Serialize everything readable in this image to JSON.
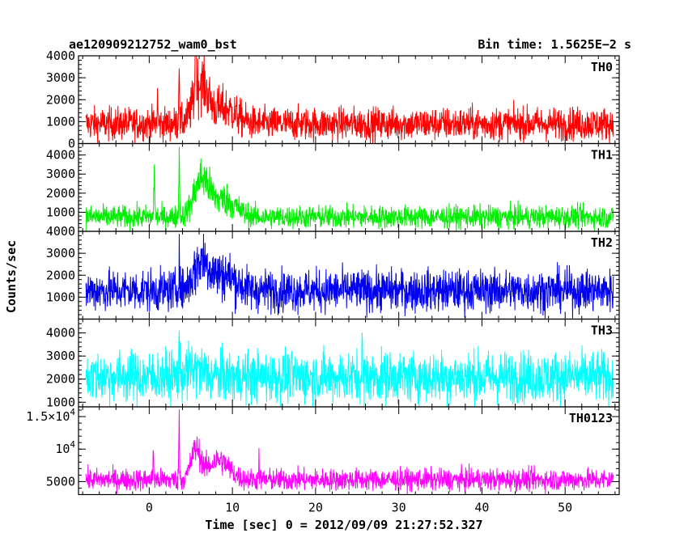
{
  "header": {
    "title": "ae120909212752_wam0_bst",
    "bin_time": "Bin time: 1.5625E−2 s"
  },
  "chart_data": {
    "type": "line",
    "title": "ae120909212752_wam0_bst",
    "xlabel": "Time [sec] 0 = 2012/09/09 21:27:52.327",
    "ylabel": "Counts/sec",
    "xlim": [
      -8.5,
      56.5
    ],
    "x_ticks": [
      0,
      10,
      20,
      30,
      40,
      50
    ],
    "data_range": [
      -7.6,
      55.8
    ],
    "grid": false,
    "panels": [
      {
        "name": "TH0",
        "color": "#ff0000",
        "ylim": [
          0,
          4000
        ],
        "y_ticks": [
          {
            "v": 0,
            "label": "0"
          },
          {
            "v": 1000,
            "label": "1000"
          },
          {
            "v": 2000,
            "label": "2000"
          },
          {
            "v": 3000,
            "label": "3000"
          },
          {
            "v": 4000,
            "label": "4000"
          }
        ],
        "baseline": 900,
        "noise": 380,
        "features": [
          {
            "t": 3.6,
            "amp": 3800,
            "w": 0.06
          },
          {
            "t": 5.6,
            "amp": 2600,
            "w": 0.12
          },
          {
            "t": 6.2,
            "amp": 1800,
            "w": 1.2
          },
          {
            "t": 1.0,
            "amp": 1300,
            "w": 0.06
          },
          {
            "t": 9.0,
            "amp": 700,
            "w": 2.0
          }
        ]
      },
      {
        "name": "TH1",
        "color": "#00ee00",
        "ylim": [
          0,
          4600
        ],
        "y_ticks": [
          {
            "v": 1000,
            "label": "1000"
          },
          {
            "v": 2000,
            "label": "2000"
          },
          {
            "v": 3000,
            "label": "3000"
          },
          {
            "v": 4000,
            "label": "4000"
          }
        ],
        "baseline": 750,
        "noise": 300,
        "features": [
          {
            "t": 3.6,
            "amp": 4000,
            "w": 0.06
          },
          {
            "t": 0.6,
            "amp": 2300,
            "w": 0.08
          },
          {
            "t": 6.3,
            "amp": 1900,
            "w": 1.3
          },
          {
            "t": 9.0,
            "amp": 900,
            "w": 2.0
          }
        ]
      },
      {
        "name": "TH2",
        "color": "#0000ee",
        "ylim": [
          0,
          4000
        ],
        "y_ticks": [
          {
            "v": 1000,
            "label": "1000"
          },
          {
            "v": 2000,
            "label": "2000"
          },
          {
            "v": 3000,
            "label": "3000"
          },
          {
            "v": 4000,
            "label": "4000"
          }
        ],
        "baseline": 1300,
        "noise": 480,
        "features": [
          {
            "t": 3.6,
            "amp": 2500,
            "w": 0.06
          },
          {
            "t": 6.3,
            "amp": 1300,
            "w": 1.3
          },
          {
            "t": 9.0,
            "amp": 700,
            "w": 2.0
          }
        ]
      },
      {
        "name": "TH3",
        "color": "#00ffff",
        "ylim": [
          800,
          4600
        ],
        "y_ticks": [
          {
            "v": 1000,
            "label": "1000"
          },
          {
            "v": 2000,
            "label": "2000"
          },
          {
            "v": 3000,
            "label": "3000"
          },
          {
            "v": 4000,
            "label": "4000"
          }
        ],
        "baseline": 2100,
        "noise": 560,
        "features": [
          {
            "t": 3.6,
            "amp": 2300,
            "w": 0.05
          },
          {
            "t": 25.6,
            "amp": 1500,
            "w": 0.05
          },
          {
            "t": 5.5,
            "amp": 300,
            "w": 1.5
          }
        ]
      },
      {
        "name": "TH0123",
        "color": "#ff00ff",
        "ylim": [
          3000,
          16500
        ],
        "y_ticks": [
          {
            "v": 5000,
            "label": "5000",
            "sci": false
          },
          {
            "v": 10000,
            "mantissa": "",
            "exp": "4",
            "sci": true
          },
          {
            "v": 15000,
            "mantissa": "1.5",
            "exp": "4",
            "sci": true
          }
        ],
        "baseline": 5300,
        "noise": 850,
        "features": [
          {
            "t": 3.6,
            "amp": 10500,
            "w": 0.06
          },
          {
            "t": 0.5,
            "amp": 5500,
            "w": 0.06
          },
          {
            "t": 5.6,
            "amp": 4500,
            "w": 0.8
          },
          {
            "t": 8.3,
            "amp": 3000,
            "w": 1.8
          },
          {
            "t": 13.2,
            "amp": 4500,
            "w": 0.05
          }
        ]
      }
    ]
  }
}
